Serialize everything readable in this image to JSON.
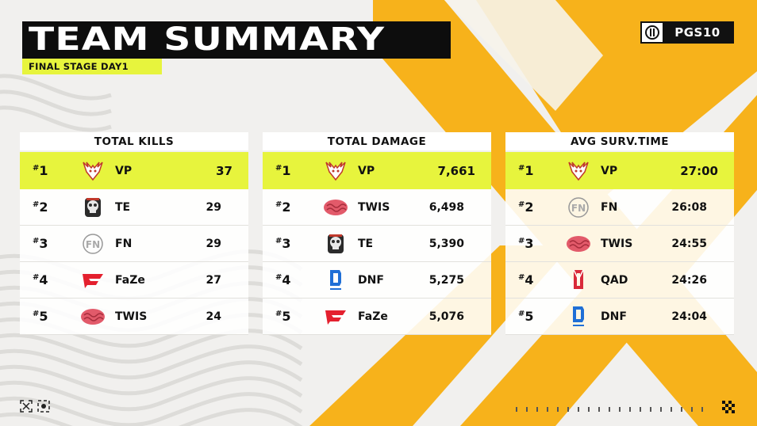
{
  "header": {
    "title": "TEAM SUMMARY",
    "subtitle": "FINAL STAGE DAY1",
    "brand": "PGS10"
  },
  "colors": {
    "accent": "#e7f43d",
    "orange": "#f7b21b",
    "dark": "#0d0d0d",
    "background": "#f1f0ee"
  },
  "panels": [
    {
      "heading": "TOTAL KILLS",
      "rows": [
        {
          "rank": "1",
          "logo": "vp-deer-icon",
          "team": "VP",
          "value": "37"
        },
        {
          "rank": "2",
          "logo": "te-skull-icon",
          "team": "TE",
          "value": "29"
        },
        {
          "rank": "3",
          "logo": "fn-logo-icon",
          "team": "FN",
          "value": "29"
        },
        {
          "rank": "4",
          "logo": "faze-logo-icon",
          "team": "FaZe",
          "value": "27"
        },
        {
          "rank": "5",
          "logo": "twis-brain-icon",
          "team": "TWIS",
          "value": "24"
        }
      ]
    },
    {
      "heading": "TOTAL DAMAGE",
      "rows": [
        {
          "rank": "1",
          "logo": "vp-deer-icon",
          "team": "VP",
          "value": "7,661"
        },
        {
          "rank": "2",
          "logo": "twis-brain-icon",
          "team": "TWIS",
          "value": "6,498"
        },
        {
          "rank": "3",
          "logo": "te-skull-icon",
          "team": "TE",
          "value": "5,390"
        },
        {
          "rank": "4",
          "logo": "dnf-logo-icon",
          "team": "DNF",
          "value": "5,275"
        },
        {
          "rank": "5",
          "logo": "faze-logo-icon",
          "team": "FaZe",
          "value": "5,076"
        }
      ]
    },
    {
      "heading": "AVG SURV.TIME",
      "rows": [
        {
          "rank": "1",
          "logo": "vp-deer-icon",
          "team": "VP",
          "value": "27:00"
        },
        {
          "rank": "2",
          "logo": "fn-logo-icon",
          "team": "FN",
          "value": "26:08"
        },
        {
          "rank": "3",
          "logo": "twis-brain-icon",
          "team": "TWIS",
          "value": "24:55"
        },
        {
          "rank": "4",
          "logo": "qad-logo-icon",
          "team": "QAD",
          "value": "24:26"
        },
        {
          "rank": "5",
          "logo": "dnf-logo-icon",
          "team": "DNF",
          "value": "24:04"
        }
      ]
    }
  ]
}
